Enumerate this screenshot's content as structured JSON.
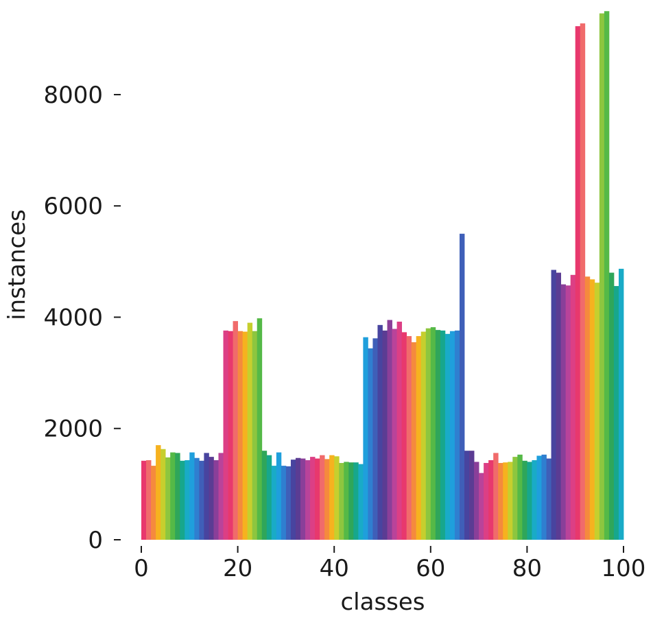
{
  "chart_data": {
    "type": "bar",
    "xlabel": "classes",
    "ylabel": "instances",
    "xlim": [
      0,
      100
    ],
    "ylim": [
      0,
      9600
    ],
    "xticks": [
      0,
      20,
      40,
      60,
      80,
      100
    ],
    "xtick_labels": [
      "0",
      "20",
      "40",
      "60",
      "80",
      "100"
    ],
    "yticks": [
      0,
      2000,
      4000,
      6000,
      8000
    ],
    "ytick_labels": [
      "0",
      "2000",
      "4000",
      "6000",
      "8000"
    ],
    "grid": false,
    "legend": "none",
    "x": [
      0,
      1,
      2,
      3,
      4,
      5,
      6,
      7,
      8,
      9,
      10,
      11,
      12,
      13,
      14,
      15,
      16,
      17,
      18,
      19,
      20,
      21,
      22,
      23,
      24,
      25,
      26,
      27,
      28,
      29,
      30,
      31,
      32,
      33,
      34,
      35,
      36,
      37,
      38,
      39,
      40,
      41,
      42,
      43,
      44,
      45,
      46,
      47,
      48,
      49,
      50,
      51,
      52,
      53,
      54,
      55,
      56,
      57,
      58,
      59,
      60,
      61,
      62,
      63,
      64,
      65,
      66,
      67,
      68,
      69,
      70,
      71,
      72,
      73,
      74,
      75,
      76,
      77,
      78,
      79,
      80,
      81,
      82,
      83,
      84,
      85,
      86,
      87,
      88,
      89,
      90,
      91,
      92,
      93,
      94,
      95,
      96,
      97,
      98,
      99
    ],
    "values": [
      1420,
      1430,
      1330,
      1700,
      1630,
      1480,
      1570,
      1560,
      1420,
      1430,
      1570,
      1470,
      1420,
      1560,
      1490,
      1430,
      1560,
      3760,
      3750,
      3930,
      3750,
      3740,
      3900,
      3750,
      3980,
      1600,
      1520,
      1330,
      1570,
      1330,
      1320,
      1440,
      1470,
      1460,
      1430,
      1490,
      1460,
      1520,
      1450,
      1520,
      1500,
      1380,
      1400,
      1390,
      1390,
      1360,
      3640,
      3440,
      3620,
      3860,
      3760,
      3950,
      3790,
      3920,
      3730,
      3660,
      3550,
      3660,
      3740,
      3800,
      3820,
      3770,
      3760,
      3700,
      3750,
      3760,
      5500,
      1600,
      1600,
      1400,
      1200,
      1380,
      1430,
      1560,
      1380,
      1390,
      1400,
      1490,
      1530,
      1420,
      1400,
      1430,
      1510,
      1530,
      1460,
      4850,
      4800,
      4590,
      4570,
      4760,
      9230,
      9280,
      4730,
      4680,
      4620,
      9460,
      9500,
      4800,
      4560,
      4870
    ],
    "colors": [
      "#e8386d",
      "#f06b6b",
      "#f58a3d",
      "#f6b21f",
      "#c6cf2e",
      "#8dc63f",
      "#55b947",
      "#2fa65a",
      "#17a78c",
      "#19abc7",
      "#1f9fdc",
      "#2f7fd0",
      "#3f5fb8",
      "#48449f",
      "#5b3c93",
      "#8a3f99",
      "#b9439a",
      "#dc3f85"
    ]
  }
}
